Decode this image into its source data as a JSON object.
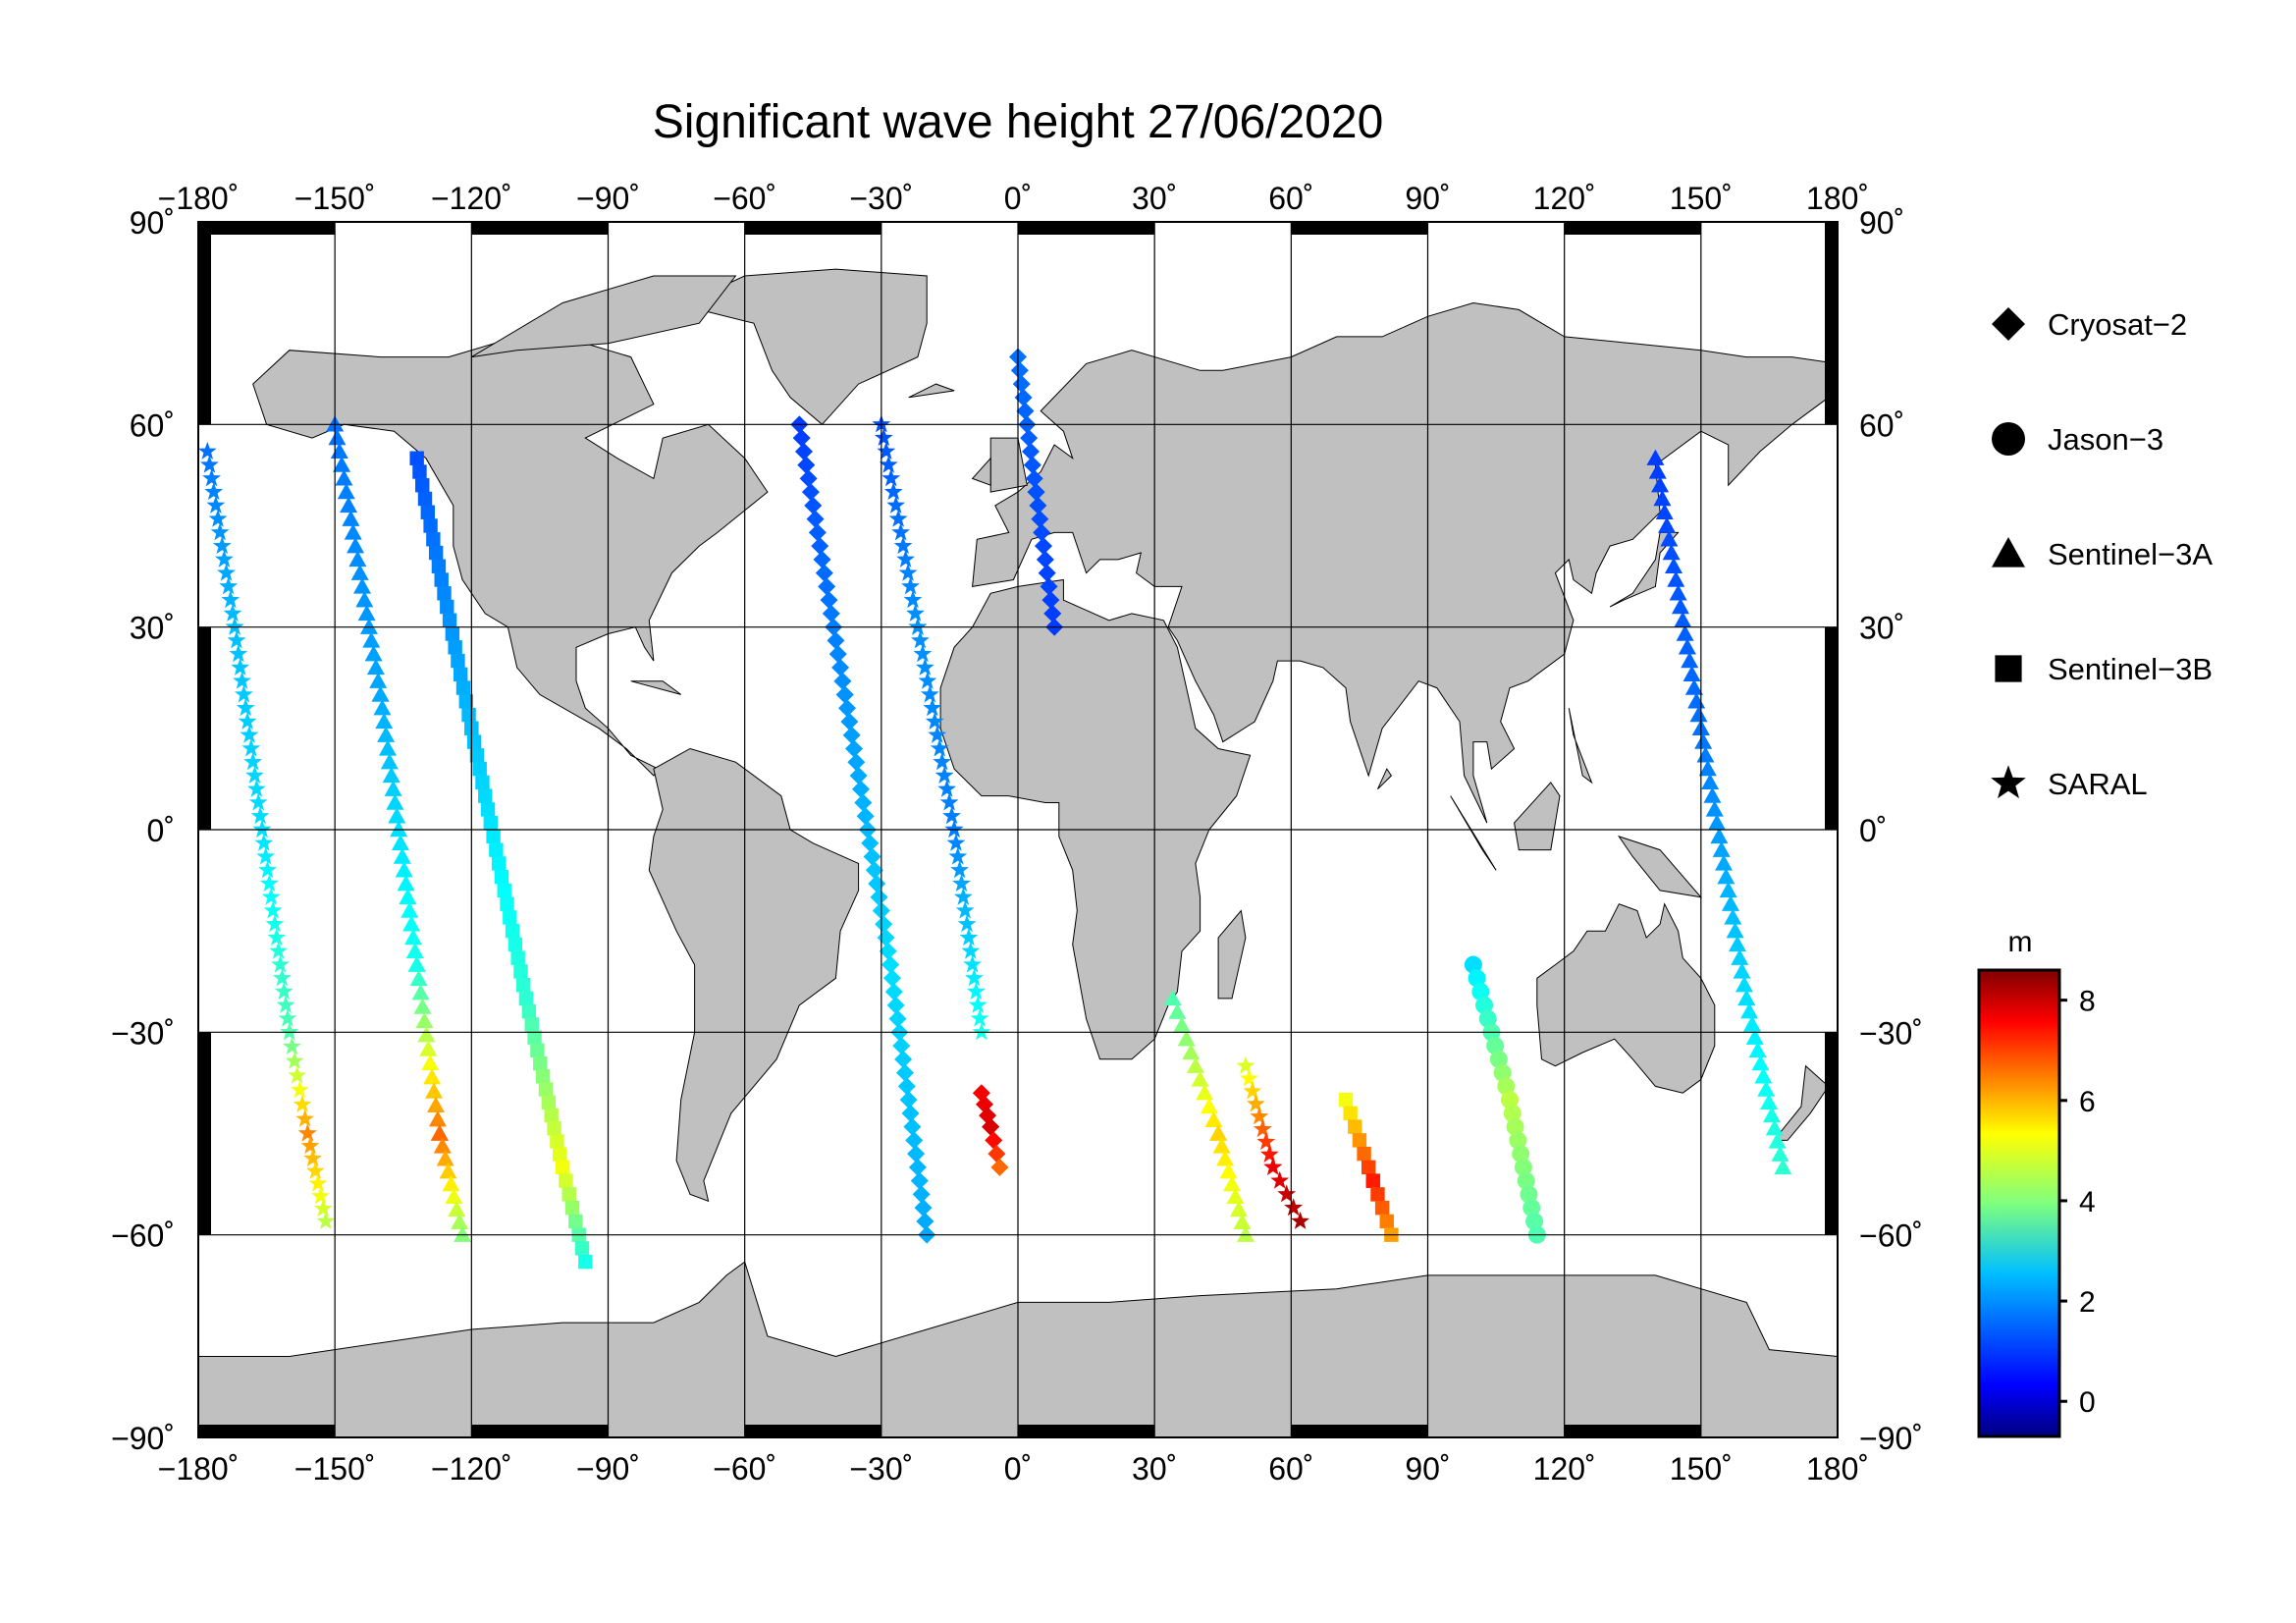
{
  "map": {
    "title": "Significant wave height 27/06/2020",
    "projection": "equirectangular",
    "lon_range": [
      -180,
      180
    ],
    "lat_range": [
      -90,
      90
    ],
    "lon_ticks": [
      "−180˚",
      "−150˚",
      "−120˚",
      "−90˚",
      "−60˚",
      "−30˚",
      "0˚",
      "30˚",
      "60˚",
      "90˚",
      "120˚",
      "150˚",
      "180˚"
    ],
    "lat_ticks_left": [
      "90˚",
      "60˚",
      "30˚",
      "0˚",
      "−30˚",
      "−60˚",
      "−90˚"
    ],
    "lat_ticks_right": [
      "90˚",
      "60˚",
      "30˚",
      "0˚",
      "−30˚",
      "−60˚",
      "−90˚"
    ],
    "land_color": "#c0c0c0",
    "ocean_color": "#ffffff",
    "grid_color": "#000000"
  },
  "legend": {
    "items": [
      {
        "label": "Cryosat−2",
        "icon": "diamond-icon"
      },
      {
        "label": "Jason−3",
        "icon": "circle-icon"
      },
      {
        "label": "Sentinel−3A",
        "icon": "triangle-icon"
      },
      {
        "label": "Sentinel−3B",
        "icon": "square-icon"
      },
      {
        "label": "SARAL",
        "icon": "star-icon"
      }
    ]
  },
  "colorbar": {
    "unit": "m",
    "ticks": [
      "8",
      "6",
      "4",
      "2",
      "0"
    ],
    "range": [
      -0.7,
      8.6
    ],
    "colormap": "jet"
  },
  "chart_data": {
    "type": "scatter",
    "variable": "significant wave height",
    "unit": "m",
    "tracks": [
      {
        "satellite": "SARAL",
        "points": [
          [
            -178,
            56,
            1.5
          ],
          [
            -172,
            30,
            2.2
          ],
          [
            -166,
            0,
            2.5
          ],
          [
            -160,
            -30,
            3.5
          ],
          [
            -156,
            -45,
            6.2
          ],
          [
            -152,
            -58,
            4.5
          ]
        ]
      },
      {
        "satellite": "Sentinel-3A",
        "points": [
          [
            -150,
            60,
            1.5
          ],
          [
            -140,
            20,
            2.0
          ],
          [
            -132,
            -20,
            3.0
          ],
          [
            -127,
            -45,
            6.5
          ],
          [
            -122,
            -60,
            4.0
          ]
        ]
      },
      {
        "satellite": "Sentinel-3B",
        "points": [
          [
            -132,
            55,
            1.2
          ],
          [
            -120,
            15,
            2.2
          ],
          [
            -108,
            -25,
            3.2
          ],
          [
            -100,
            -50,
            5.0
          ],
          [
            -95,
            -64,
            3.0
          ]
        ]
      },
      {
        "satellite": "Cryosat-2",
        "points": [
          [
            -48,
            60,
            1.0
          ],
          [
            -38,
            20,
            1.8
          ],
          [
            -28,
            -20,
            2.5
          ],
          [
            -20,
            -60,
            2.0
          ]
        ]
      },
      {
        "satellite": "Cryosat-2",
        "points": [
          [
            -8,
            -39,
            7.5
          ],
          [
            -6,
            -44,
            7.8
          ],
          [
            -4,
            -50,
            6.5
          ]
        ]
      },
      {
        "satellite": "Sentinel-3A",
        "points": [
          [
            34,
            -25,
            3.5
          ],
          [
            44,
            -45,
            5.5
          ],
          [
            50,
            -60,
            4.5
          ]
        ]
      },
      {
        "satellite": "SARAL",
        "points": [
          [
            50,
            -35,
            4.8
          ],
          [
            56,
            -50,
            7.6
          ],
          [
            62,
            -58,
            8.2
          ]
        ]
      },
      {
        "satellite": "Sentinel-3B",
        "points": [
          [
            72,
            -40,
            5.0
          ],
          [
            78,
            -52,
            7.2
          ],
          [
            82,
            -60,
            6.0
          ]
        ]
      },
      {
        "satellite": "Jason-3",
        "points": [
          [
            100,
            -20,
            2.5
          ],
          [
            108,
            -40,
            4.5
          ],
          [
            114,
            -60,
            3.5
          ]
        ]
      },
      {
        "satellite": "Sentinel-3A",
        "points": [
          [
            140,
            55,
            1.0
          ],
          [
            150,
            15,
            1.5
          ],
          [
            160,
            -25,
            2.5
          ],
          [
            168,
            -50,
            3.2
          ]
        ]
      },
      {
        "satellite": "Cryosat-2",
        "points": [
          [
            0,
            70,
            1.5
          ],
          [
            4,
            50,
            1.2
          ],
          [
            8,
            30,
            1.0
          ]
        ]
      },
      {
        "satellite": "SARAL",
        "points": [
          [
            -30,
            60,
            1.2
          ],
          [
            -22,
            30,
            1.8
          ],
          [
            -14,
            0,
            1.6
          ],
          [
            -8,
            -30,
            3.0
          ]
        ]
      }
    ]
  }
}
